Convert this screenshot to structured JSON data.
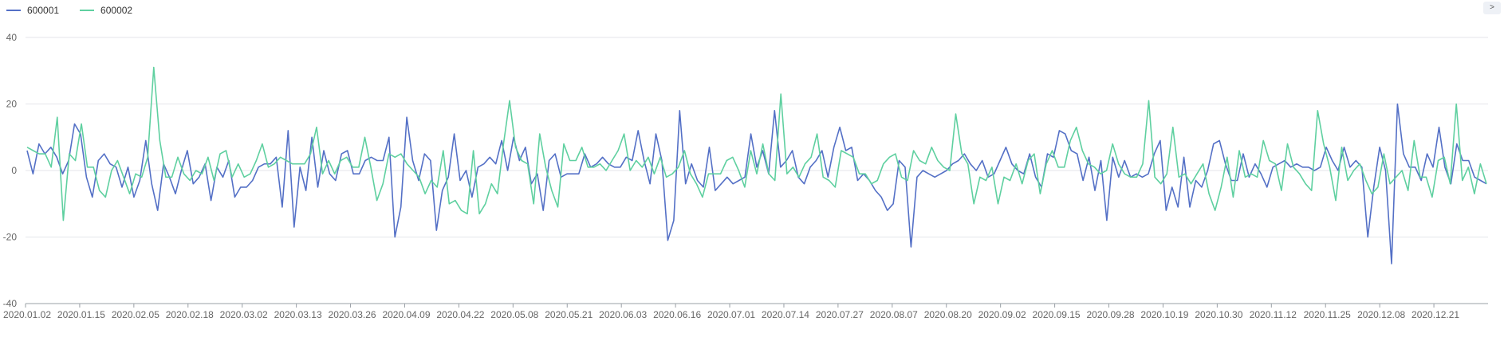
{
  "toolbar": {
    "corner_glyph": ">"
  },
  "colors": {
    "series_a": "#5470c6",
    "series_b": "#5fd0a0",
    "grid": "#e4e6ea",
    "axis": "#9aa0a6",
    "tick_text": "#666666"
  },
  "chart_data": {
    "type": "line",
    "title": "",
    "xlabel": "",
    "ylabel": "",
    "ylim": [
      -40,
      40
    ],
    "yticks": [
      -40,
      -20,
      0,
      20,
      40
    ],
    "grid": true,
    "legend_position": "top-left",
    "xtick_labels": [
      "2020.01.02",
      "2020.01.15",
      "2020.02.05",
      "2020.02.18",
      "2020.03.02",
      "2020.03.13",
      "2020.03.26",
      "2020.04.09",
      "2020.04.22",
      "2020.05.08",
      "2020.05.21",
      "2020.06.03",
      "2020.06.16",
      "2020.07.01",
      "2020.07.14",
      "2020.07.27",
      "2020.08.07",
      "2020.08.20",
      "2020.09.02",
      "2020.09.15",
      "2020.09.28",
      "2020.10.19",
      "2020.10.30",
      "2020.11.12",
      "2020.11.25",
      "2020.12.08",
      "2020.12.21"
    ],
    "series": [
      {
        "name": "600001",
        "color": "#5470c6",
        "values": [
          6,
          -1,
          8,
          5,
          7,
          4,
          -1,
          3,
          14,
          11,
          -2,
          -8,
          3,
          5,
          2,
          1,
          -5,
          1,
          -8,
          -3,
          9,
          -4,
          -12,
          2,
          -2,
          -7,
          0,
          6,
          -4,
          -2,
          2,
          -9,
          1,
          -2,
          3,
          -8,
          -5,
          -5,
          -3,
          1,
          2,
          2,
          4,
          -11,
          12,
          -17,
          1,
          -6,
          10,
          -5,
          6,
          -1,
          -3,
          5,
          6,
          -1,
          -1,
          3,
          4,
          3,
          3,
          10,
          -20,
          -11,
          16,
          3,
          -3,
          5,
          3,
          -18,
          -6,
          -2,
          11,
          -3,
          0,
          -8,
          1,
          2,
          4,
          2,
          9,
          0,
          10,
          3,
          7,
          -4,
          -1,
          -12,
          3,
          5,
          -2,
          -1,
          -1,
          -1,
          5,
          1,
          2,
          4,
          2,
          1,
          1,
          4,
          3,
          12,
          3,
          -4,
          11,
          3,
          -21,
          -15,
          18,
          -4,
          2,
          -3,
          -5,
          7,
          -6,
          -4,
          -2,
          -4,
          -3,
          -2,
          11,
          1,
          6,
          -1,
          18,
          1,
          3,
          6,
          -2,
          -4,
          1,
          3,
          6,
          -2,
          7,
          13,
          6,
          7,
          -3,
          -1,
          -3,
          -6,
          -8,
          -12,
          -10,
          3,
          1,
          -23,
          -2,
          0,
          -1,
          -2,
          -1,
          0,
          2,
          3,
          5,
          2,
          0,
          3,
          -2,
          -1,
          3,
          7,
          2,
          0,
          -1,
          5,
          -2,
          -5,
          5,
          4,
          12,
          11,
          6,
          5,
          -3,
          4,
          -6,
          3,
          -15,
          4,
          -2,
          3,
          -2,
          -1,
          -2,
          -1,
          5,
          9,
          -12,
          -5,
          -11,
          4,
          -11,
          -3,
          -5,
          0,
          8,
          9,
          2,
          -3,
          -3,
          5,
          -2,
          2,
          -1,
          -5,
          1,
          2,
          3,
          1,
          2,
          1,
          1,
          0,
          1,
          7,
          3,
          0,
          7,
          1,
          3,
          1,
          -20,
          -5,
          7,
          0,
          -28,
          20,
          5,
          1,
          1,
          -3,
          5,
          1,
          13,
          1,
          -4,
          8,
          3,
          3,
          -2,
          -3,
          -4
        ]
      },
      {
        "name": "600002",
        "color": "#5fd0a0",
        "values": [
          7,
          6,
          5,
          5,
          1,
          16,
          -15,
          5,
          3,
          14,
          1,
          1,
          -6,
          -8,
          0,
          3,
          -2,
          -7,
          -1,
          -2,
          4,
          31,
          9,
          -2,
          -2,
          4,
          -1,
          -3,
          0,
          -1,
          4,
          -3,
          5,
          6,
          -2,
          2,
          -2,
          -1,
          3,
          8,
          1,
          2,
          4,
          3,
          2,
          2,
          2,
          5,
          13,
          -1,
          3,
          -1,
          3,
          4,
          1,
          1,
          10,
          1,
          -9,
          -4,
          5,
          4,
          5,
          2,
          0,
          -2,
          -7,
          -3,
          -5,
          6,
          -10,
          -9,
          -12,
          -13,
          6,
          -13,
          -10,
          -4,
          -7,
          8,
          21,
          7,
          3,
          2,
          -10,
          11,
          1,
          -6,
          -11,
          8,
          3,
          3,
          7,
          1,
          1,
          2,
          0,
          3,
          6,
          11,
          0,
          3,
          1,
          4,
          -1,
          4,
          -2,
          -1,
          1,
          6,
          -1,
          -4,
          -8,
          -1,
          -1,
          -1,
          3,
          4,
          0,
          -5,
          6,
          -1,
          8,
          -1,
          -3,
          23,
          -1,
          1,
          -2,
          2,
          4,
          11,
          -2,
          -3,
          -5,
          6,
          5,
          4,
          -1,
          -1,
          -4,
          -3,
          2,
          4,
          5,
          -2,
          -3,
          6,
          3,
          2,
          7,
          3,
          1,
          0,
          17,
          5,
          2,
          -10,
          -2,
          -3,
          1,
          -10,
          -2,
          -3,
          2,
          -4,
          3,
          5,
          -7,
          2,
          6,
          1,
          1,
          9,
          13,
          6,
          2,
          1,
          -1,
          0,
          8,
          2,
          -1,
          -2,
          -2,
          2,
          21,
          -2,
          -4,
          -1,
          13,
          -2,
          -1,
          -4,
          -1,
          2,
          -7,
          -12,
          -5,
          4,
          -8,
          6,
          -2,
          -1,
          -2,
          9,
          3,
          2,
          -6,
          8,
          1,
          -1,
          -4,
          -6,
          18,
          8,
          1,
          -9,
          7,
          -3,
          0,
          2,
          -3,
          -7,
          -5,
          5,
          -4,
          -2,
          0,
          -6,
          9,
          -2,
          -2,
          -8,
          3,
          4,
          -4,
          20,
          -3,
          1,
          -7,
          2,
          -4
        ]
      }
    ]
  }
}
